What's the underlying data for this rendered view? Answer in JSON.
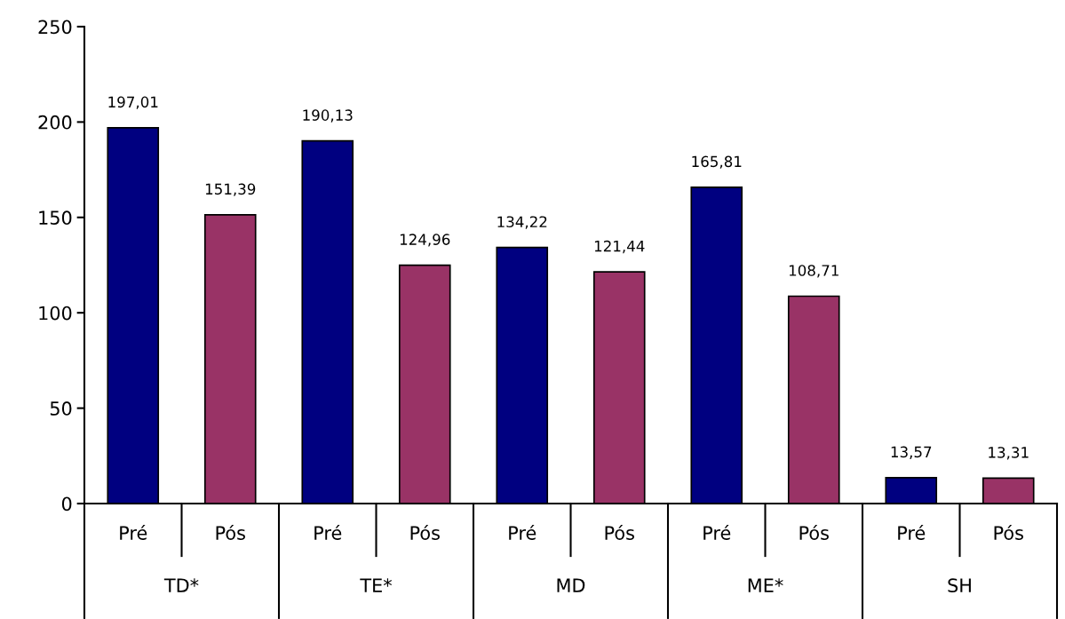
{
  "chart_data": {
    "type": "bar",
    "categories": [
      "TD*",
      "TE*",
      "MD",
      "ME*",
      "SH"
    ],
    "series": [
      {
        "name": "Pré",
        "color": "#000080",
        "values": [
          197.01,
          190.13,
          134.22,
          165.81,
          13.57
        ],
        "value_labels": [
          "197,01",
          "190,13",
          "134,22",
          "165,81",
          "13,57"
        ]
      },
      {
        "name": "Pós",
        "color": "#993366",
        "values": [
          151.39,
          124.96,
          121.44,
          108.71,
          13.31
        ],
        "value_labels": [
          "151,39",
          "124,96",
          "121,44",
          "108,71",
          "13,31"
        ]
      }
    ],
    "ylim": [
      0,
      250
    ],
    "yticks": [
      0,
      50,
      100,
      150,
      200,
      250
    ],
    "grid": false,
    "legend": false
  }
}
